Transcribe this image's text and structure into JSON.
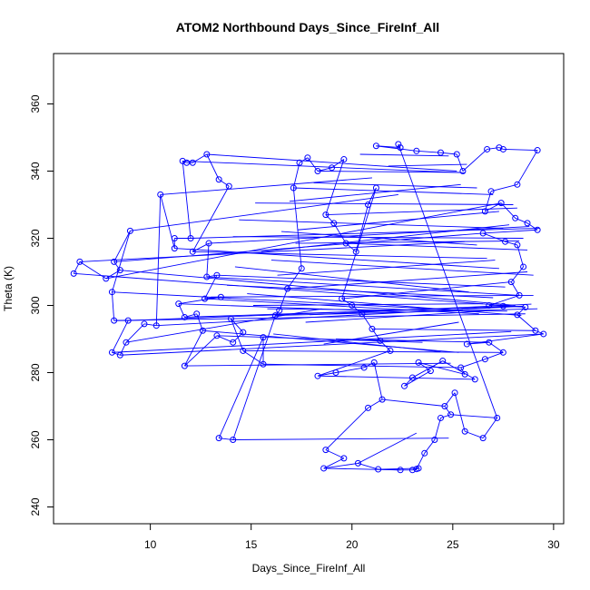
{
  "chart_data": {
    "type": "scatter",
    "title": "ATOM2 Northbound Days_Since_FireInf_All",
    "xlabel": "Days_Since_FireInf_All",
    "ylabel": "Theta (K)",
    "xlim": [
      5.2,
      30.5
    ],
    "ylim": [
      235,
      375
    ],
    "x_ticks": [
      10,
      15,
      20,
      25,
      30
    ],
    "y_ticks": [
      240,
      260,
      280,
      300,
      320,
      340,
      360
    ],
    "grid": false,
    "legend": "none",
    "marker": "open-circle",
    "connected": true,
    "color": "#0000ff",
    "series": [
      {
        "points": [
          [
            6.2,
            309.5
          ],
          [
            6.5,
            313
          ],
          [
            7.8,
            308
          ],
          [
            8.5,
            310.5
          ],
          [
            8.2,
            313
          ],
          [
            9,
            322.2
          ],
          [
            8.1,
            304
          ],
          [
            8.2,
            295.5
          ],
          [
            8.9,
            295.5
          ],
          [
            8.1,
            286
          ],
          [
            8.5,
            285.2
          ],
          [
            8.8,
            289
          ],
          [
            9.7,
            294.5
          ],
          [
            10.3,
            294
          ],
          [
            10.5,
            333
          ],
          [
            11.2,
            317
          ],
          [
            11.2,
            320
          ],
          [
            12,
            320
          ],
          [
            11.6,
            343
          ],
          [
            11.8,
            342.5
          ],
          [
            12.1,
            342.5
          ],
          [
            12.8,
            345
          ],
          [
            13.4,
            337.5
          ],
          [
            13.9,
            335.5
          ],
          [
            12.1,
            316
          ],
          [
            12.9,
            318.5
          ],
          [
            12.8,
            308.5
          ],
          [
            13.3,
            309
          ],
          [
            12.7,
            302
          ],
          [
            13.5,
            302.5
          ],
          [
            11.4,
            300.5
          ],
          [
            11.7,
            296.5
          ],
          [
            12.3,
            297.5
          ],
          [
            12.6,
            292.5
          ],
          [
            11.7,
            282
          ],
          [
            13.3,
            291
          ],
          [
            14.1,
            289
          ],
          [
            14.6,
            292
          ],
          [
            14,
            296
          ],
          [
            14.6,
            286.5
          ],
          [
            15.6,
            282.5
          ],
          [
            15.6,
            290.5
          ],
          [
            13.4,
            260.5
          ],
          [
            14.1,
            260
          ],
          [
            16.2,
            297
          ],
          [
            16.4,
            298.5
          ],
          [
            16.8,
            305
          ],
          [
            17.5,
            311
          ],
          [
            17.1,
            335
          ],
          [
            17.4,
            342.5
          ],
          [
            17.8,
            344
          ],
          [
            18.3,
            340
          ],
          [
            19,
            341
          ],
          [
            19.6,
            343.5
          ],
          [
            18.7,
            327
          ],
          [
            19.1,
            324.5
          ],
          [
            19.7,
            318.5
          ],
          [
            20.2,
            316
          ],
          [
            20.8,
            330
          ],
          [
            21.2,
            335
          ],
          [
            19.5,
            302
          ],
          [
            20,
            300
          ],
          [
            20.5,
            297.5
          ],
          [
            21,
            293
          ],
          [
            21.4,
            289.5
          ],
          [
            21.9,
            286.5
          ],
          [
            18.3,
            279
          ],
          [
            19.2,
            280
          ],
          [
            20.6,
            281.5
          ],
          [
            21.1,
            283
          ],
          [
            21.5,
            272
          ],
          [
            20.8,
            269.5
          ],
          [
            18.7,
            257
          ],
          [
            19.6,
            254.5
          ],
          [
            18.6,
            251.5
          ],
          [
            20.3,
            253
          ],
          [
            21.3,
            251.2
          ],
          [
            22.4,
            251
          ],
          [
            23,
            251
          ],
          [
            23.3,
            251.5
          ],
          [
            23.2,
            251.3
          ],
          [
            23.6,
            256
          ],
          [
            24.1,
            260
          ],
          [
            24.4,
            266.5
          ],
          [
            24.9,
            267.5
          ],
          [
            24.6,
            270
          ],
          [
            25.1,
            274
          ],
          [
            25.6,
            262.5
          ],
          [
            26.5,
            260.5
          ],
          [
            27.2,
            266.5
          ],
          [
            22.3,
            348
          ],
          [
            22.4,
            347
          ],
          [
            21.2,
            347.5
          ],
          [
            23.2,
            346
          ],
          [
            24.4,
            345.5
          ],
          [
            25.2,
            345
          ],
          [
            25.5,
            340
          ],
          [
            26.7,
            346.5
          ],
          [
            27.3,
            347
          ],
          [
            27.5,
            346.5
          ],
          [
            29.2,
            346.2
          ],
          [
            28.2,
            336
          ],
          [
            26.9,
            334
          ],
          [
            26.6,
            328
          ],
          [
            27.4,
            330.5
          ],
          [
            28.1,
            326
          ],
          [
            28.7,
            324.5
          ],
          [
            29.2,
            322.5
          ],
          [
            26.5,
            321.5
          ],
          [
            27.6,
            319
          ],
          [
            28.2,
            318
          ],
          [
            28.5,
            311.5
          ],
          [
            27.9,
            307
          ],
          [
            28.3,
            303
          ],
          [
            26.8,
            300
          ],
          [
            27.5,
            299.8
          ],
          [
            28.6,
            299.5
          ],
          [
            28.2,
            297.2
          ],
          [
            29.1,
            292.5
          ],
          [
            29.5,
            291.5
          ],
          [
            25.7,
            288.5
          ],
          [
            26.8,
            289
          ],
          [
            27.5,
            286
          ],
          [
            26.6,
            284
          ],
          [
            25.4,
            281.5
          ],
          [
            25.6,
            279.5
          ],
          [
            23.3,
            283
          ],
          [
            23.9,
            280.5
          ],
          [
            22.6,
            276
          ],
          [
            23,
            278.5
          ],
          [
            24.5,
            283.5
          ],
          [
            26.1,
            278
          ]
        ],
        "segments": [
          [
            [
              6.2,
              309.5
            ],
            [
              28.6,
              299.5
            ]
          ],
          [
            [
              6.5,
              313
            ],
            [
              25.6,
              319
            ]
          ],
          [
            [
              7.8,
              308
            ],
            [
              27.4,
              330.5
            ]
          ],
          [
            [
              8.5,
              310.5
            ],
            [
              28.1,
              300
            ]
          ],
          [
            [
              8.2,
              313
            ],
            [
              26.5,
              321.5
            ]
          ],
          [
            [
              9,
              322.2
            ],
            [
              22.3,
              333
            ]
          ],
          [
            [
              8.1,
              304
            ],
            [
              25.5,
              298.5
            ]
          ],
          [
            [
              8.2,
              295.5
            ],
            [
              28.6,
              297.5
            ]
          ],
          [
            [
              8.9,
              295.5
            ],
            [
              24,
              299
            ]
          ],
          [
            [
              8.1,
              286
            ],
            [
              27.9,
              292.2
            ]
          ],
          [
            [
              8.5,
              285.2
            ],
            [
              29.5,
              291.5
            ]
          ],
          [
            [
              8.8,
              289
            ],
            [
              18.5,
              299
            ]
          ],
          [
            [
              10.3,
              294
            ],
            [
              28.5,
              299.8
            ]
          ],
          [
            [
              10.5,
              333
            ],
            [
              21,
              338
            ]
          ],
          [
            [
              11.2,
              317
            ],
            [
              27.3,
              311
            ]
          ],
          [
            [
              12,
              320
            ],
            [
              29.3,
              323
            ]
          ],
          [
            [
              11.6,
              343
            ],
            [
              25.6,
              339.5
            ]
          ],
          [
            [
              12.8,
              345
            ],
            [
              25.2,
              340
            ]
          ],
          [
            [
              12.1,
              316
            ],
            [
              26.7,
              314
            ]
          ],
          [
            [
              12.9,
              318.5
            ],
            [
              28.8,
              323.5
            ]
          ],
          [
            [
              12.8,
              308.5
            ],
            [
              28.3,
              303
            ]
          ],
          [
            [
              13.3,
              309
            ],
            [
              27.6,
              305.5
            ]
          ],
          [
            [
              12.7,
              302
            ],
            [
              26.3,
              297.5
            ]
          ],
          [
            [
              11.4,
              300.5
            ],
            [
              22.7,
              298
            ]
          ],
          [
            [
              11.7,
              296.5
            ],
            [
              28,
              299.7
            ]
          ],
          [
            [
              12.6,
              292.5
            ],
            [
              25.3,
              286
            ]
          ],
          [
            [
              11.7,
              282
            ],
            [
              24.9,
              282.8
            ]
          ],
          [
            [
              13.3,
              291
            ],
            [
              23.5,
              289
            ]
          ],
          [
            [
              14.6,
              286.5
            ],
            [
              27.5,
              286
            ]
          ],
          [
            [
              15.6,
              282.5
            ],
            [
              25.4,
              281.5
            ]
          ],
          [
            [
              14.1,
              260
            ],
            [
              24.8,
              260.5
            ]
          ],
          [
            [
              16.2,
              297
            ],
            [
              29.2,
              299
            ]
          ],
          [
            [
              16.8,
              305
            ],
            [
              28.7,
              310
            ]
          ],
          [
            [
              17.1,
              335
            ],
            [
              27,
              333
            ]
          ],
          [
            [
              18.3,
              340
            ],
            [
              25.4,
              339.6
            ]
          ],
          [
            [
              18.7,
              327
            ],
            [
              28.2,
              329
            ]
          ],
          [
            [
              19.7,
              318.5
            ],
            [
              28.7,
              316.5
            ]
          ],
          [
            [
              19.5,
              302
            ],
            [
              27.9,
              307
            ]
          ],
          [
            [
              21,
              293
            ],
            [
              29.1,
              292.5
            ]
          ],
          [
            [
              18.3,
              279
            ],
            [
              26.1,
              278
            ]
          ],
          [
            [
              20.3,
              253
            ],
            [
              23.2,
              262
            ]
          ],
          [
            [
              21.3,
              251.2
            ],
            [
              23.3,
              251.5
            ]
          ],
          [
            [
              18.6,
              251.5
            ],
            [
              22.4,
              251
            ]
          ],
          [
            [
              24.9,
              267.5
            ],
            [
              27.2,
              266.5
            ]
          ],
          [
            [
              21.5,
              272
            ],
            [
              24.6,
              270
            ]
          ],
          [
            [
              14.1,
              320.5
            ],
            [
              28.5,
              320
            ]
          ],
          [
            [
              15.5,
              316
            ],
            [
              27.8,
              324
            ]
          ],
          [
            [
              16,
              313.5
            ],
            [
              29,
              309
            ]
          ],
          [
            [
              14.4,
              325.5
            ],
            [
              27.5,
              323
            ]
          ],
          [
            [
              15.2,
              330.5
            ],
            [
              28,
              330
            ]
          ],
          [
            [
              16.5,
              322
            ],
            [
              26.2,
              318
            ]
          ],
          [
            [
              13.8,
              306
            ],
            [
              27,
              302.3
            ]
          ],
          [
            [
              14.8,
              303.5
            ],
            [
              28.4,
              297
            ]
          ],
          [
            [
              15.1,
              300
            ],
            [
              26.5,
              300.5
            ]
          ],
          [
            [
              16.3,
              309
            ],
            [
              27.1,
              313.5
            ]
          ],
          [
            [
              17.2,
              318.5
            ],
            [
              28.3,
              319.2
            ]
          ],
          [
            [
              17.7,
              295
            ],
            [
              26.7,
              298.4
            ]
          ],
          [
            [
              13,
              302.5
            ],
            [
              29,
              303
            ]
          ],
          [
            [
              14.2,
              311.5
            ],
            [
              25.8,
              304
            ]
          ],
          [
            [
              15.8,
              299
            ],
            [
              27.7,
              298.3
            ]
          ],
          [
            [
              16.9,
              331
            ],
            [
              25.4,
              336
            ]
          ],
          [
            [
              18.1,
              336.5
            ],
            [
              26.2,
              335
            ]
          ],
          [
            [
              17.3,
              322.5
            ],
            [
              27.3,
              328
            ]
          ],
          [
            [
              19.2,
              290
            ],
            [
              26.8,
              289
            ]
          ],
          [
            [
              18.6,
              288.5
            ],
            [
              25.3,
              295
            ]
          ],
          [
            [
              17.9,
              297.2
            ],
            [
              28.9,
              300.4
            ]
          ],
          [
            [
              16.1,
              291.5
            ],
            [
              24.4,
              286.2
            ]
          ],
          [
            [
              20.4,
              345
            ],
            [
              24.8,
              344.5
            ]
          ],
          [
            [
              21.8,
              341.5
            ],
            [
              25.7,
              342
            ]
          ]
        ]
      }
    ]
  }
}
